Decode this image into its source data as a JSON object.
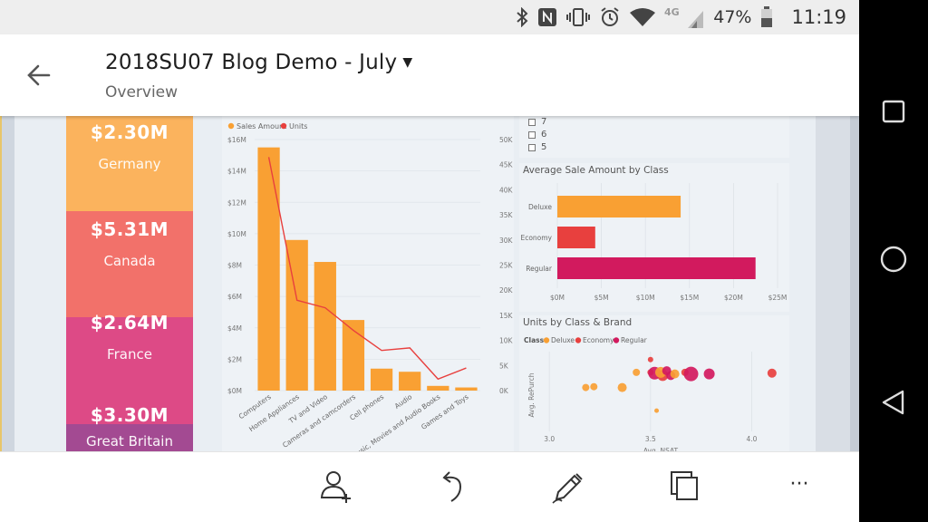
{
  "status_bar": {
    "battery_text": "47%",
    "time": "11:19",
    "network_label": "4G",
    "icons": [
      "bluetooth-icon",
      "nfc-icon",
      "vibrate-icon",
      "alarm-icon",
      "wifi-icon",
      "signal-icon",
      "battery-icon"
    ]
  },
  "app_bar": {
    "title": "2018SU07 Blog Demo - July",
    "subtitle": "Overview",
    "icons": [
      "back-arrow-icon",
      "chevron-down-icon"
    ]
  },
  "tiles": [
    {
      "amount": "$2.30M",
      "country": "Germany",
      "color": "#fbb35d"
    },
    {
      "amount": "$5.31M",
      "country": "Canada",
      "color": "#f2716a"
    },
    {
      "amount": "$2.64M",
      "country": "France",
      "color": "#dd4a86"
    },
    {
      "amount": "$3.30M",
      "country": "Great Britain",
      "color": "#a34a92"
    }
  ],
  "slicer": {
    "items": [
      "7",
      "6",
      "5"
    ]
  },
  "colors": {
    "sales": "#f9a033",
    "units": "#e8403e",
    "deluxe": "#f9a033",
    "economy": "#e8403e",
    "regular": "#d21a5e"
  },
  "chart_data": [
    {
      "type": "bar",
      "legend": [
        "Sales Amount",
        "Units"
      ],
      "categories": [
        "Computers",
        "Home Appliances",
        "TV and Video",
        "Cameras and camcorders",
        "Cell phones",
        "Audio",
        "Music, Movies and Audio Books",
        "Games and Toys"
      ],
      "series": [
        {
          "name": "Sales Amount",
          "type": "bar",
          "axis": "left",
          "values": [
            15.5,
            9.6,
            8.2,
            4.5,
            1.4,
            1.2,
            0.3,
            0.2
          ]
        },
        {
          "name": "Units",
          "type": "line",
          "axis": "right",
          "values": [
            46500,
            18000,
            16500,
            12000,
            8000,
            8500,
            2300,
            4500
          ]
        }
      ],
      "y_left_ticks": [
        "$0M",
        "$2M",
        "$4M",
        "$6M",
        "$8M",
        "$10M",
        "$12M",
        "$14M",
        "$16M"
      ],
      "y_right_ticks": [
        "0K",
        "5K",
        "10K",
        "15K",
        "20K",
        "25K",
        "30K",
        "35K",
        "40K",
        "45K",
        "50K"
      ],
      "ylim_left": [
        0,
        16
      ],
      "ylim_right": [
        0,
        50000
      ],
      "legend_position": "top-left"
    },
    {
      "type": "bar",
      "orientation": "horizontal",
      "title": "Average Sale Amount by Class",
      "categories": [
        "Deluxe",
        "Economy",
        "Regular"
      ],
      "values": [
        14.0,
        4.3,
        22.5
      ],
      "x_ticks": [
        "$0M",
        "$5M",
        "$10M",
        "$15M",
        "$20M",
        "$25M"
      ],
      "xlim": [
        0,
        25
      ]
    },
    {
      "type": "scatter",
      "title": "Units by Class & Brand",
      "legend_title": "Class",
      "legend": [
        "Deluxe",
        "Economy",
        "Regular"
      ],
      "ylabel": "Avg. RePurch",
      "xlabel": "Avg. NSAT",
      "x_ticks": [
        "3.0",
        "3.5",
        "4.0"
      ],
      "xlim": [
        2.95,
        4.15
      ],
      "points": [
        {
          "x": 3.18,
          "y": 0.55,
          "r": 4,
          "class": "Deluxe"
        },
        {
          "x": 3.22,
          "y": 0.56,
          "r": 4,
          "class": "Deluxe"
        },
        {
          "x": 3.36,
          "y": 0.55,
          "r": 5,
          "class": "Deluxe"
        },
        {
          "x": 3.43,
          "y": 0.74,
          "r": 4,
          "class": "Deluxe"
        },
        {
          "x": 3.53,
          "y": 0.26,
          "r": 2.5,
          "class": "Deluxe"
        },
        {
          "x": 3.5,
          "y": 0.9,
          "r": 3,
          "class": "Economy"
        },
        {
          "x": 3.5,
          "y": 0.74,
          "r": 3.5,
          "class": "Economy"
        },
        {
          "x": 3.56,
          "y": 0.7,
          "r": 6,
          "class": "Economy"
        },
        {
          "x": 3.6,
          "y": 0.7,
          "r": 5,
          "class": "Regular"
        },
        {
          "x": 3.52,
          "y": 0.73,
          "r": 7,
          "class": "Regular"
        },
        {
          "x": 3.55,
          "y": 0.74,
          "r": 6,
          "class": "Deluxe"
        },
        {
          "x": 3.58,
          "y": 0.76,
          "r": 5,
          "class": "Regular"
        },
        {
          "x": 3.62,
          "y": 0.72,
          "r": 5,
          "class": "Deluxe"
        },
        {
          "x": 3.67,
          "y": 0.74,
          "r": 4,
          "class": "Economy"
        },
        {
          "x": 3.7,
          "y": 0.72,
          "r": 8,
          "class": "Regular"
        },
        {
          "x": 3.79,
          "y": 0.72,
          "r": 6,
          "class": "Regular"
        },
        {
          "x": 4.1,
          "y": 0.73,
          "r": 5,
          "class": "Economy"
        }
      ]
    }
  ],
  "bottom_bar": {
    "icons": [
      "add-person-icon",
      "undo-icon",
      "pen-icon",
      "copy-icon",
      "more-icon"
    ],
    "more_label": "···"
  },
  "nav_bar": {
    "icons": [
      "recents-square-icon",
      "home-circle-icon",
      "back-triangle-icon"
    ]
  }
}
